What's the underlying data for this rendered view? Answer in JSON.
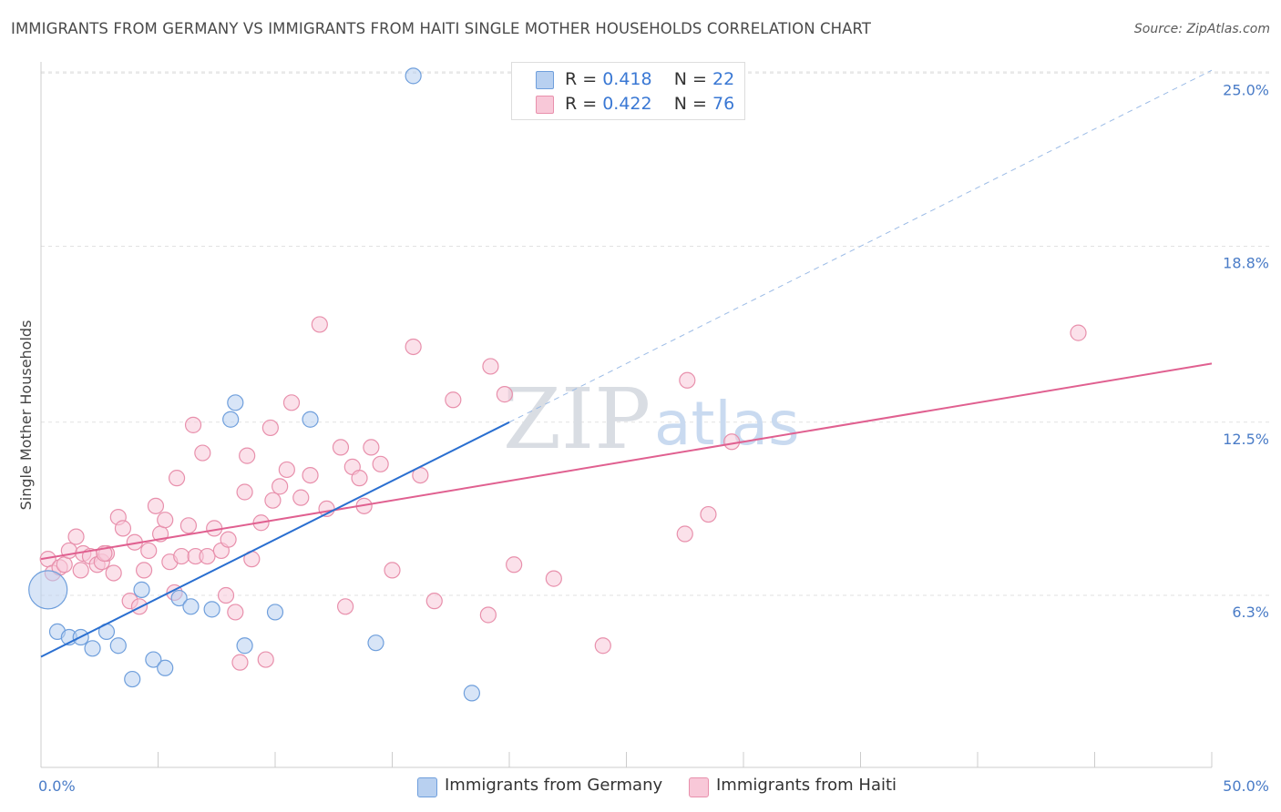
{
  "title": "IMMIGRANTS FROM GERMANY VS IMMIGRANTS FROM HAITI SINGLE MOTHER HOUSEHOLDS CORRELATION CHART",
  "source": "Source: ZipAtlas.com",
  "legend": {
    "germany": {
      "r_label": "R =",
      "r_value": "0.418",
      "n_label": "N =",
      "n_value": "22"
    },
    "haiti": {
      "r_label": "R =",
      "r_value": "0.422",
      "n_label": "N =",
      "n_value": "76"
    }
  },
  "bottom_legend": {
    "germany": "Immigrants from Germany",
    "haiti": "Immigrants from Haiti"
  },
  "watermark": {
    "zip": "ZIP",
    "atlas": "atlas"
  },
  "colors": {
    "germany_fill": "#b8d0f0",
    "germany_stroke": "#6f9fdc",
    "germany_line": "#2a6fd0",
    "haiti_fill": "#f8c8d8",
    "haiti_stroke": "#e890ac",
    "haiti_line": "#e06090",
    "tick_label": "#4a7cc7",
    "grid": "#e2e2e2"
  },
  "chart_data": {
    "type": "scatter",
    "xlabel": "",
    "ylabel": "Single Mother Households",
    "xlim": [
      0,
      50
    ],
    "ylim": [
      0,
      26
    ],
    "x_tick_labels": [
      {
        "value": 0,
        "label": "0.0%"
      },
      {
        "value": 50,
        "label": "50.0%"
      }
    ],
    "y_tick_labels": [
      {
        "value": 6.3,
        "label": "6.3%"
      },
      {
        "value": 12.5,
        "label": "12.5%"
      },
      {
        "value": 18.8,
        "label": "18.8%"
      },
      {
        "value": 25.0,
        "label": "25.0%"
      }
    ],
    "grid": "horizontal dashed",
    "series": [
      {
        "name": "Immigrants from Germany",
        "points": [
          [
            0.3,
            6.5,
            "large"
          ],
          [
            0.7,
            5.0
          ],
          [
            1.2,
            4.8
          ],
          [
            1.7,
            4.8
          ],
          [
            2.2,
            4.4
          ],
          [
            2.8,
            5.0
          ],
          [
            3.3,
            4.5
          ],
          [
            3.9,
            3.3
          ],
          [
            4.3,
            6.5
          ],
          [
            4.8,
            4.0
          ],
          [
            5.3,
            3.7
          ],
          [
            5.9,
            6.2
          ],
          [
            6.4,
            5.9
          ],
          [
            7.3,
            5.8
          ],
          [
            8.1,
            12.6
          ],
          [
            8.3,
            13.2
          ],
          [
            8.7,
            4.5
          ],
          [
            10.0,
            5.7
          ],
          [
            11.5,
            12.6
          ],
          [
            14.3,
            4.6
          ],
          [
            15.9,
            24.9
          ],
          [
            18.4,
            2.8
          ]
        ],
        "trend": {
          "x": [
            0,
            20
          ],
          "y": [
            4.1,
            12.5
          ],
          "extended_dashed": {
            "x": [
              20,
              50
            ],
            "y": [
              12.5,
              25.1
            ]
          }
        }
      },
      {
        "name": "Immigrants from Haiti",
        "points": [
          [
            0.3,
            7.6
          ],
          [
            0.5,
            7.1
          ],
          [
            0.8,
            7.3
          ],
          [
            1.0,
            7.4
          ],
          [
            1.2,
            7.9
          ],
          [
            1.5,
            8.4
          ],
          [
            1.7,
            7.2
          ],
          [
            1.8,
            7.8
          ],
          [
            2.1,
            7.7
          ],
          [
            2.4,
            7.4
          ],
          [
            2.6,
            7.5
          ],
          [
            2.8,
            7.8
          ],
          [
            3.1,
            7.1
          ],
          [
            3.3,
            9.1
          ],
          [
            3.5,
            8.7
          ],
          [
            3.8,
            6.1
          ],
          [
            4.0,
            8.2
          ],
          [
            4.2,
            5.9
          ],
          [
            4.4,
            7.2
          ],
          [
            4.6,
            7.9
          ],
          [
            4.9,
            9.5
          ],
          [
            5.1,
            8.5
          ],
          [
            5.3,
            9.0
          ],
          [
            5.5,
            7.5
          ],
          [
            5.8,
            10.5
          ],
          [
            6.0,
            7.7
          ],
          [
            6.3,
            8.8
          ],
          [
            6.5,
            12.4
          ],
          [
            6.6,
            7.7
          ],
          [
            6.9,
            11.4
          ],
          [
            7.1,
            7.7
          ],
          [
            7.4,
            8.7
          ],
          [
            7.7,
            7.9
          ],
          [
            7.9,
            6.3
          ],
          [
            8.0,
            8.3
          ],
          [
            8.3,
            5.7
          ],
          [
            8.5,
            3.9
          ],
          [
            8.7,
            10.0
          ],
          [
            8.8,
            11.3
          ],
          [
            9.0,
            7.6
          ],
          [
            9.4,
            8.9
          ],
          [
            9.6,
            4.0
          ],
          [
            9.8,
            12.3
          ],
          [
            9.9,
            9.7
          ],
          [
            10.2,
            10.2
          ],
          [
            10.5,
            10.8
          ],
          [
            10.7,
            13.2
          ],
          [
            11.1,
            9.8
          ],
          [
            11.5,
            10.6
          ],
          [
            11.9,
            16.0
          ],
          [
            12.2,
            9.4
          ],
          [
            12.8,
            11.6
          ],
          [
            13.0,
            5.9
          ],
          [
            13.3,
            10.9
          ],
          [
            13.6,
            10.5
          ],
          [
            13.8,
            9.5
          ],
          [
            14.1,
            11.6
          ],
          [
            14.5,
            11.0
          ],
          [
            15.0,
            7.2
          ],
          [
            15.9,
            15.2
          ],
          [
            16.2,
            10.6
          ],
          [
            16.8,
            6.1
          ],
          [
            17.6,
            13.3
          ],
          [
            19.1,
            5.6
          ],
          [
            19.2,
            14.5
          ],
          [
            19.8,
            13.5
          ],
          [
            20.2,
            7.4
          ],
          [
            21.9,
            6.9
          ],
          [
            24.0,
            4.5
          ],
          [
            27.5,
            8.5
          ],
          [
            27.6,
            14.0
          ],
          [
            28.5,
            9.2
          ],
          [
            29.5,
            11.8
          ],
          [
            44.3,
            15.7
          ],
          [
            2.7,
            7.8
          ],
          [
            5.7,
            6.4
          ]
        ],
        "trend": {
          "x": [
            0,
            50
          ],
          "y": [
            7.6,
            14.6
          ]
        }
      }
    ]
  }
}
